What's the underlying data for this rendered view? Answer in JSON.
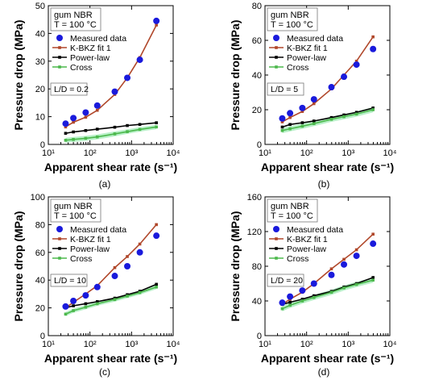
{
  "colors": {
    "measured": "#1a1adc",
    "kbkz": "#b0472a",
    "power": "#000000",
    "cross": "#4cb84c",
    "band": "#b8f0c8"
  },
  "chart_data": [
    {
      "type": "scatter",
      "panel": "(a)",
      "ylabel": "Pressure drop (MPa)",
      "xlabel": "Apparent shear rate (s⁻¹)",
      "xscale": "log",
      "xlim": [
        10,
        10000
      ],
      "ylim": [
        0,
        50
      ],
      "yticks": [
        0,
        10,
        20,
        30,
        40,
        50
      ],
      "xticks": [
        "10¹",
        "10²",
        "10³",
        "10⁴"
      ],
      "info_lines": [
        "gum NBR",
        "T = 100 °C"
      ],
      "ld_label": "L/D = 0.2",
      "legend": [
        "Measured data",
        "K-BKZ fit 1",
        "Power-law",
        "Cross"
      ],
      "x": [
        26,
        40,
        79,
        150,
        395,
        790,
        1580,
        3950
      ],
      "series": [
        {
          "name": "Measured data",
          "kind": "points",
          "values": [
            7.5,
            9.5,
            11.5,
            14,
            19,
            24,
            30.5,
            44.5
          ]
        },
        {
          "name": "K-BKZ fit 1",
          "kind": "line",
          "values": [
            6.3,
            8,
            9.8,
            12.3,
            18,
            24,
            31.3,
            43
          ]
        },
        {
          "name": "Power-law",
          "kind": "line",
          "values": [
            4,
            4.5,
            5,
            5.5,
            6.2,
            6.8,
            7.2,
            7.8
          ]
        },
        {
          "name": "Cross",
          "kind": "line",
          "values": [
            1.5,
            1.8,
            2.2,
            2.7,
            3.8,
            4.6,
            5.4,
            6.3
          ]
        }
      ],
      "band": {
        "lower": [
          0.6,
          0.9,
          1.3,
          1.8,
          2.9,
          3.8,
          4.6,
          5.5
        ],
        "upper": [
          2.4,
          2.7,
          3.1,
          3.6,
          4.7,
          5.4,
          6.2,
          7.1
        ]
      }
    },
    {
      "type": "scatter",
      "panel": "(b)",
      "ylabel": "Pressure drop (MPa)",
      "xlabel": "Apparent shear rate (s⁻¹)",
      "xscale": "log",
      "xlim": [
        10,
        10000
      ],
      "ylim": [
        0,
        80
      ],
      "yticks": [
        0,
        20,
        40,
        60,
        80
      ],
      "xticks": [
        "10¹",
        "10²",
        "10³",
        "10⁴"
      ],
      "info_lines": [
        "gum NBR",
        "T = 100 °C"
      ],
      "ld_label": "L/D = 5",
      "legend": [
        "Measured data",
        "K-BKZ fit 1",
        "Power-law",
        "Cross"
      ],
      "x": [
        26,
        40,
        79,
        150,
        395,
        790,
        1580,
        3950
      ],
      "series": [
        {
          "name": "Measured data",
          "kind": "points",
          "values": [
            15,
            18,
            21,
            26,
            33,
            39,
            46,
            55
          ]
        },
        {
          "name": "K-BKZ fit 1",
          "kind": "line",
          "values": [
            13,
            15.5,
            19,
            23.5,
            32,
            40,
            48,
            62
          ]
        },
        {
          "name": "Power-law",
          "kind": "line",
          "values": [
            10,
            11.5,
            12.5,
            13.5,
            15.5,
            17,
            18.5,
            21
          ]
        },
        {
          "name": "Cross",
          "kind": "line",
          "values": [
            8,
            9,
            10.5,
            12,
            14.5,
            16,
            17.5,
            20
          ]
        }
      ],
      "band": {
        "lower": [
          6.5,
          7.5,
          9,
          10.5,
          13,
          14.5,
          16,
          18.5
        ],
        "upper": [
          9.5,
          10.5,
          12,
          13.5,
          16,
          17.5,
          19,
          21.5
        ]
      }
    },
    {
      "type": "scatter",
      "panel": "(c)",
      "ylabel": "Pressure drop (MPa)",
      "xlabel": "Apparent shear rate (s⁻¹)",
      "xscale": "log",
      "xlim": [
        10,
        10000
      ],
      "ylim": [
        0,
        100
      ],
      "yticks": [
        0,
        20,
        40,
        60,
        80,
        100
      ],
      "xticks": [
        "10¹",
        "10²",
        "10³",
        "10⁴"
      ],
      "info_lines": [
        "gum NBR",
        "T = 100 °C"
      ],
      "ld_label": "L/D = 10",
      "legend": [
        "Measured data",
        "K-BKZ fit 1",
        "Power-law",
        "Cross"
      ],
      "x": [
        26,
        40,
        79,
        150,
        395,
        790,
        1580,
        3950
      ],
      "series": [
        {
          "name": "Measured data",
          "kind": "points",
          "values": [
            21,
            25,
            29,
            35,
            43,
            50,
            60,
            72
          ]
        },
        {
          "name": "K-BKZ fit 1",
          "kind": "line",
          "values": [
            20,
            24,
            30,
            36,
            49,
            57,
            66,
            80
          ]
        },
        {
          "name": "Power-law",
          "kind": "line",
          "values": [
            20,
            21.5,
            23,
            24.5,
            27,
            29.5,
            32,
            37
          ]
        },
        {
          "name": "Cross",
          "kind": "line",
          "values": [
            15.5,
            18,
            20.5,
            23,
            26,
            28.5,
            31,
            35
          ]
        }
      ],
      "band": {
        "lower": [
          14,
          16.5,
          19,
          21.5,
          24.5,
          27,
          29.5,
          33.5
        ],
        "upper": [
          17,
          19.5,
          22,
          24.5,
          27.5,
          30,
          32.5,
          36.5
        ]
      }
    },
    {
      "type": "scatter",
      "panel": "(d)",
      "ylabel": "Pressure drop (MPa)",
      "xlabel": "Apparent shear rate (s⁻¹)",
      "xscale": "log",
      "xlim": [
        10,
        10000
      ],
      "ylim": [
        0,
        160
      ],
      "yticks": [
        0,
        40,
        80,
        120,
        160
      ],
      "xticks": [
        "10¹",
        "10²",
        "10³",
        "10⁴"
      ],
      "info_lines": [
        "gum NBR",
        "T = 100 °C"
      ],
      "ld_label": "L/D = 20",
      "legend": [
        "Measured data",
        "K-BKZ fit 1",
        "Power-law",
        "Cross"
      ],
      "x": [
        26,
        40,
        79,
        150,
        395,
        790,
        1580,
        3950
      ],
      "series": [
        {
          "name": "Measured data",
          "kind": "points",
          "values": [
            38,
            45,
            52,
            60,
            70,
            82,
            92,
            106
          ]
        },
        {
          "name": "K-BKZ fit 1",
          "kind": "line",
          "values": [
            36,
            42,
            50,
            60,
            77,
            88,
            99,
            117
          ]
        },
        {
          "name": "Power-law",
          "kind": "line",
          "values": [
            36,
            38.5,
            42,
            46,
            51,
            56,
            60,
            67
          ]
        },
        {
          "name": "Cross",
          "kind": "line",
          "values": [
            31,
            35,
            40,
            44,
            50,
            55,
            59,
            64
          ]
        }
      ],
      "band": {
        "lower": [
          28,
          32,
          37,
          41,
          47,
          52,
          56,
          61
        ],
        "upper": [
          34,
          38,
          43,
          47,
          53,
          58,
          62,
          67
        ]
      }
    }
  ]
}
